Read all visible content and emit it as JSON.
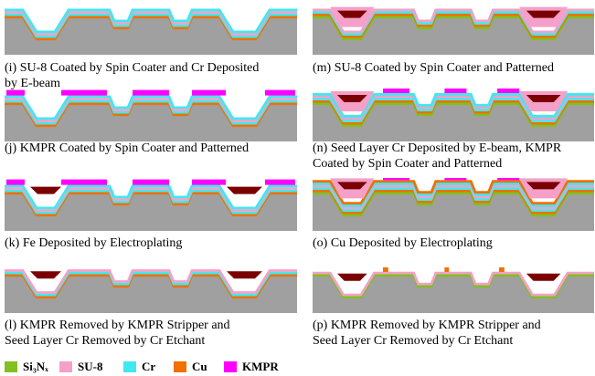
{
  "panels": [
    {
      "caption": [
        "(i) SU-8 Coated by Spin Coater and Cr Deposited",
        "by E-beam"
      ]
    },
    {
      "caption": [
        "(j) KMPR Coated by Spin Coater and Patterned"
      ]
    },
    {
      "caption": [
        "(k) Fe Deposited by Electroplating"
      ]
    },
    {
      "caption": [
        "(l) KMPR Removed by KMPR Stripper and",
        "Seed Layer Cr Removed by Cr Etchant"
      ]
    },
    {
      "caption": [
        "(m) SU-8 Coated by Spin Coater and Patterned"
      ]
    },
    {
      "caption": [
        "(n) Seed Layer Cr Deposited by E-beam, KMPR",
        "Coated by Spin Coater and Patterned"
      ]
    },
    {
      "caption": [
        "(o) Cu Deposited by Electroplating"
      ]
    },
    {
      "caption": [
        "(p) KMPR Removed by KMPR Stripper and",
        "Seed Layer Cr Removed by Cr Etchant"
      ]
    }
  ],
  "legend": [
    {
      "label": "Si₃Nₓ",
      "color": "#80c020"
    },
    {
      "label": "SU-8",
      "color": "#f4a0c8"
    },
    {
      "label": "Cr",
      "color": "#40e8f0"
    },
    {
      "label": "Cu",
      "color": "#f07000"
    },
    {
      "label": "KMPR",
      "color": "#ff00ff"
    }
  ]
}
